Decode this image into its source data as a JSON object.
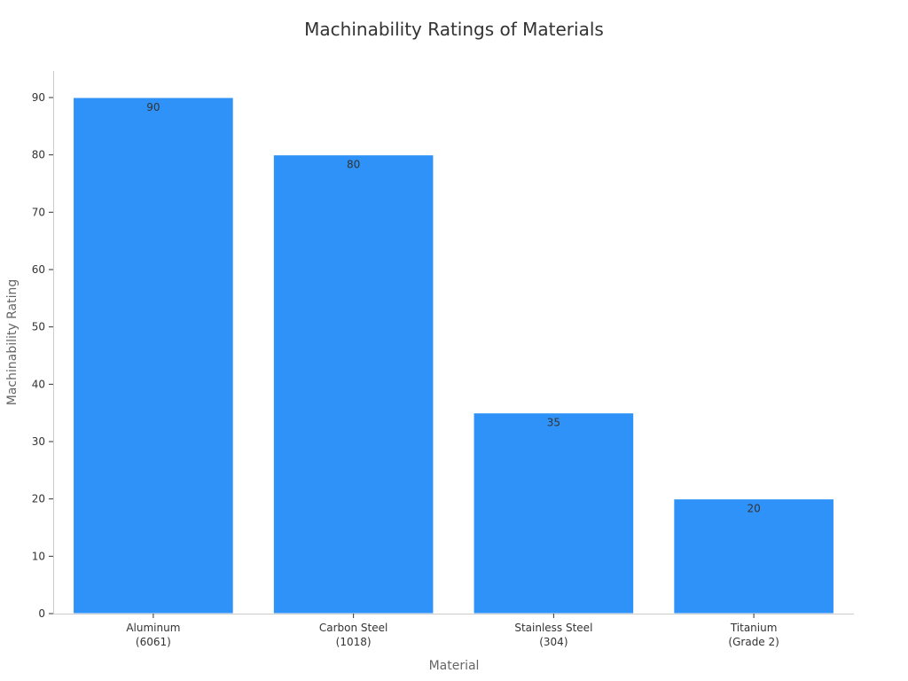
{
  "chart_data": {
    "type": "bar",
    "title": "Machinability Ratings of Materials",
    "xlabel": "Material",
    "ylabel": "Machinability Rating",
    "categories": [
      [
        "Aluminum",
        "(6061)"
      ],
      [
        "Carbon Steel",
        "(1018)"
      ],
      [
        "Stainless Steel",
        "(304)"
      ],
      [
        "Titanium",
        "(Grade 2)"
      ]
    ],
    "values": [
      90,
      80,
      35,
      20
    ],
    "data_labels": [
      "90",
      "80",
      "35",
      "20"
    ],
    "yticks": [
      0,
      10,
      20,
      30,
      40,
      50,
      60,
      70,
      80,
      90
    ],
    "ylim": [
      0,
      95
    ],
    "grid": false,
    "bar_color": "#2f92f8",
    "bar_edge_color": "#ffffff"
  }
}
